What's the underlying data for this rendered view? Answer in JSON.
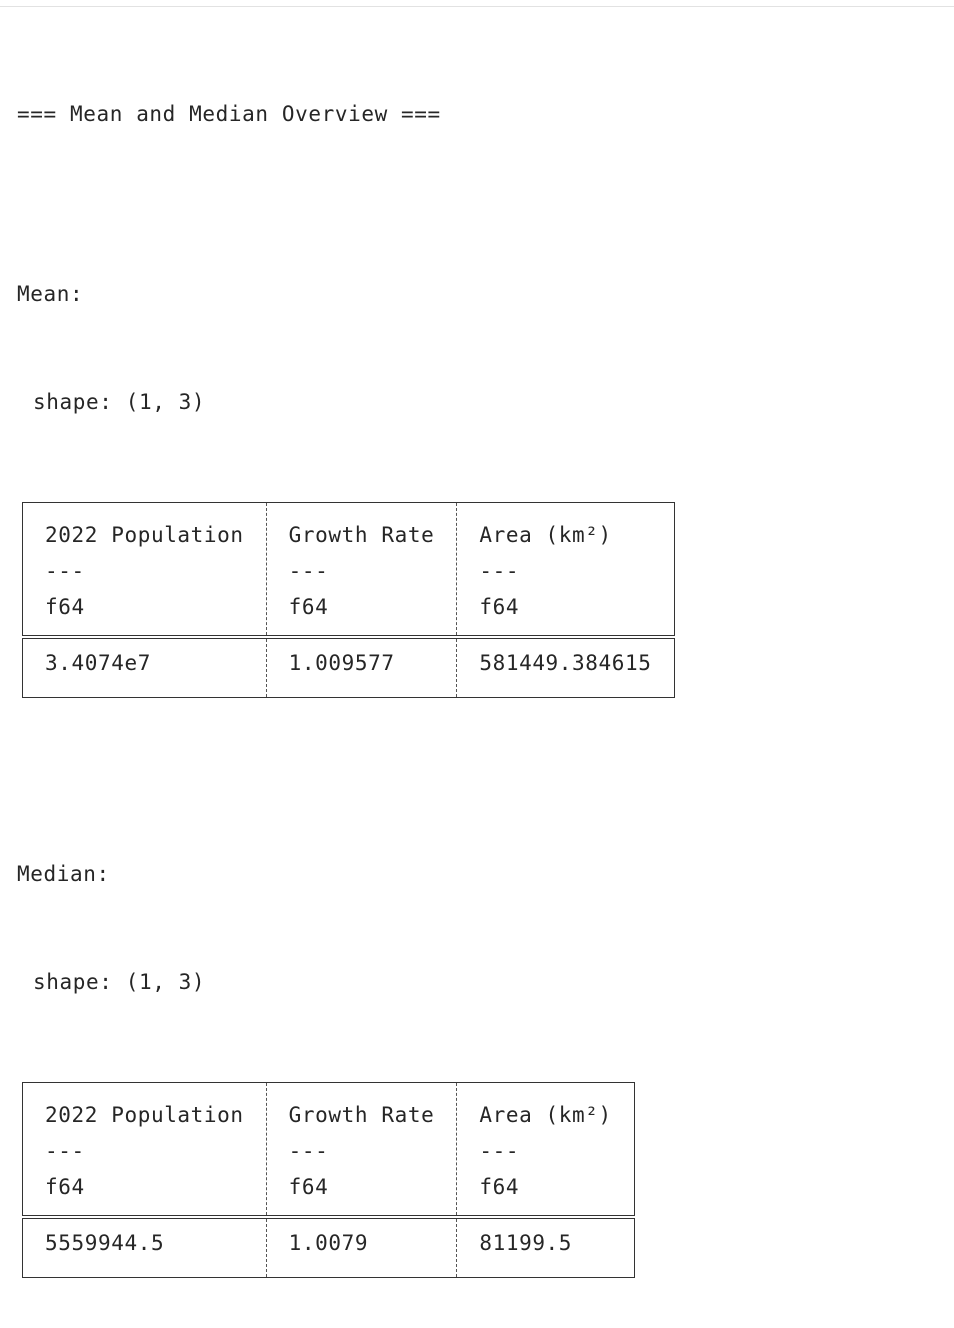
{
  "output": {
    "header": "=== Mean and Median Overview ===",
    "sections": [
      {
        "label": "Mean:",
        "shape": "shape: (1, 3)",
        "columns": [
          {
            "name": "2022 Population",
            "sep": "---",
            "dtype": "f64"
          },
          {
            "name": "Growth Rate",
            "sep": "---",
            "dtype": "f64"
          },
          {
            "name": "Area (km²)",
            "sep": "---",
            "dtype": "f64"
          }
        ],
        "row": [
          "3.4074e7",
          "1.009577",
          "581449.384615"
        ]
      },
      {
        "label": "Median:",
        "shape": "shape: (1, 3)",
        "columns": [
          {
            "name": "2022 Population",
            "sep": "---",
            "dtype": "f64"
          },
          {
            "name": "Growth Rate",
            "sep": "---",
            "dtype": "f64"
          },
          {
            "name": "Area (km²)",
            "sep": "---",
            "dtype": "f64"
          }
        ],
        "row": [
          "5559944.5",
          "1.0079",
          "81199.5"
        ]
      }
    ]
  }
}
